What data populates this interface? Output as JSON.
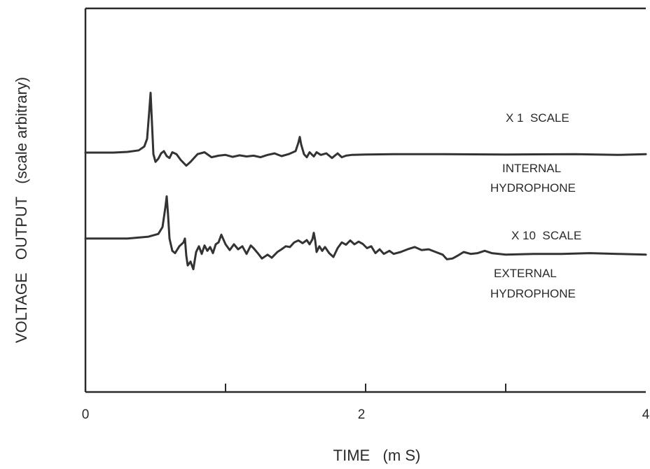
{
  "chart_data": {
    "type": "line",
    "title": "",
    "xlabel": "TIME   (m S)",
    "ylabel": "VOLTAGE   OUTPUT   (scale arbitrary)",
    "xlim": [
      0,
      4
    ],
    "ylim": [
      0,
      1
    ],
    "x_ticks": [
      0,
      2,
      4
    ],
    "x_minor_ticks": [
      1,
      3
    ],
    "grid": false,
    "y_scale_note": "arbitrary",
    "annotations": [
      "X 1  SCALE",
      "INTERNAL",
      "HYDROPHONE",
      "X 10  SCALE",
      "EXTERNAL",
      "HYDROPHONE"
    ],
    "series": [
      {
        "name": "INTERNAL HYDROPHONE",
        "scale": "X 1  SCALE",
        "points": [
          [
            0.0,
            0.624
          ],
          [
            0.2,
            0.624
          ],
          [
            0.3,
            0.626
          ],
          [
            0.38,
            0.63
          ],
          [
            0.42,
            0.64
          ],
          [
            0.44,
            0.66
          ],
          [
            0.455,
            0.73
          ],
          [
            0.465,
            0.78
          ],
          [
            0.475,
            0.7
          ],
          [
            0.485,
            0.62
          ],
          [
            0.5,
            0.6
          ],
          [
            0.52,
            0.608
          ],
          [
            0.54,
            0.622
          ],
          [
            0.56,
            0.628
          ],
          [
            0.58,
            0.615
          ],
          [
            0.6,
            0.61
          ],
          [
            0.62,
            0.625
          ],
          [
            0.65,
            0.62
          ],
          [
            0.68,
            0.605
          ],
          [
            0.72,
            0.59
          ],
          [
            0.75,
            0.6
          ],
          [
            0.8,
            0.62
          ],
          [
            0.85,
            0.625
          ],
          [
            0.9,
            0.612
          ],
          [
            0.95,
            0.616
          ],
          [
            1.0,
            0.618
          ],
          [
            1.05,
            0.613
          ],
          [
            1.1,
            0.617
          ],
          [
            1.15,
            0.614
          ],
          [
            1.2,
            0.616
          ],
          [
            1.25,
            0.612
          ],
          [
            1.3,
            0.618
          ],
          [
            1.35,
            0.622
          ],
          [
            1.4,
            0.615
          ],
          [
            1.45,
            0.62
          ],
          [
            1.5,
            0.628
          ],
          [
            1.52,
            0.65
          ],
          [
            1.53,
            0.665
          ],
          [
            1.54,
            0.645
          ],
          [
            1.56,
            0.62
          ],
          [
            1.58,
            0.612
          ],
          [
            1.6,
            0.625
          ],
          [
            1.63,
            0.614
          ],
          [
            1.65,
            0.625
          ],
          [
            1.68,
            0.618
          ],
          [
            1.72,
            0.622
          ],
          [
            1.76,
            0.61
          ],
          [
            1.8,
            0.622
          ],
          [
            1.83,
            0.612
          ],
          [
            1.86,
            0.616
          ],
          [
            1.9,
            0.618
          ],
          [
            2.0,
            0.619
          ],
          [
            2.2,
            0.62
          ],
          [
            2.5,
            0.62
          ],
          [
            3.0,
            0.619
          ],
          [
            3.5,
            0.62
          ],
          [
            3.8,
            0.618
          ],
          [
            4.0,
            0.62
          ]
        ]
      },
      {
        "name": "EXTERNAL HYDROPHONE",
        "scale": "X 10  SCALE",
        "points": [
          [
            0.0,
            0.4
          ],
          [
            0.3,
            0.4
          ],
          [
            0.45,
            0.405
          ],
          [
            0.52,
            0.412
          ],
          [
            0.55,
            0.43
          ],
          [
            0.57,
            0.48
          ],
          [
            0.58,
            0.51
          ],
          [
            0.59,
            0.46
          ],
          [
            0.6,
            0.4
          ],
          [
            0.62,
            0.368
          ],
          [
            0.64,
            0.362
          ],
          [
            0.67,
            0.38
          ],
          [
            0.7,
            0.39
          ],
          [
            0.71,
            0.4
          ],
          [
            0.72,
            0.355
          ],
          [
            0.73,
            0.33
          ],
          [
            0.75,
            0.34
          ],
          [
            0.77,
            0.32
          ],
          [
            0.79,
            0.365
          ],
          [
            0.81,
            0.38
          ],
          [
            0.83,
            0.36
          ],
          [
            0.85,
            0.382
          ],
          [
            0.87,
            0.368
          ],
          [
            0.89,
            0.378
          ],
          [
            0.91,
            0.362
          ],
          [
            0.93,
            0.385
          ],
          [
            0.95,
            0.39
          ],
          [
            0.97,
            0.41
          ],
          [
            1.0,
            0.385
          ],
          [
            1.03,
            0.37
          ],
          [
            1.06,
            0.385
          ],
          [
            1.09,
            0.372
          ],
          [
            1.12,
            0.38
          ],
          [
            1.15,
            0.36
          ],
          [
            1.18,
            0.382
          ],
          [
            1.2,
            0.375
          ],
          [
            1.23,
            0.362
          ],
          [
            1.26,
            0.348
          ],
          [
            1.3,
            0.358
          ],
          [
            1.33,
            0.35
          ],
          [
            1.37,
            0.365
          ],
          [
            1.4,
            0.372
          ],
          [
            1.43,
            0.38
          ],
          [
            1.46,
            0.378
          ],
          [
            1.49,
            0.39
          ],
          [
            1.52,
            0.395
          ],
          [
            1.55,
            0.388
          ],
          [
            1.58,
            0.396
          ],
          [
            1.6,
            0.385
          ],
          [
            1.62,
            0.398
          ],
          [
            1.63,
            0.415
          ],
          [
            1.64,
            0.395
          ],
          [
            1.65,
            0.365
          ],
          [
            1.67,
            0.38
          ],
          [
            1.69,
            0.368
          ],
          [
            1.71,
            0.378
          ],
          [
            1.74,
            0.362
          ],
          [
            1.77,
            0.352
          ],
          [
            1.8,
            0.375
          ],
          [
            1.83,
            0.39
          ],
          [
            1.86,
            0.384
          ],
          [
            1.89,
            0.395
          ],
          [
            1.92,
            0.385
          ],
          [
            1.95,
            0.392
          ],
          [
            1.98,
            0.386
          ],
          [
            2.01,
            0.375
          ],
          [
            2.04,
            0.38
          ],
          [
            2.07,
            0.362
          ],
          [
            2.1,
            0.372
          ],
          [
            2.13,
            0.36
          ],
          [
            2.17,
            0.368
          ],
          [
            2.2,
            0.36
          ],
          [
            2.25,
            0.365
          ],
          [
            2.3,
            0.372
          ],
          [
            2.35,
            0.378
          ],
          [
            2.4,
            0.37
          ],
          [
            2.45,
            0.372
          ],
          [
            2.5,
            0.365
          ],
          [
            2.55,
            0.358
          ],
          [
            2.58,
            0.346
          ],
          [
            2.62,
            0.348
          ],
          [
            2.66,
            0.356
          ],
          [
            2.7,
            0.365
          ],
          [
            2.75,
            0.36
          ],
          [
            2.8,
            0.362
          ],
          [
            2.85,
            0.368
          ],
          [
            2.9,
            0.362
          ],
          [
            3.0,
            0.358
          ],
          [
            3.2,
            0.36
          ],
          [
            3.4,
            0.36
          ],
          [
            3.6,
            0.362
          ],
          [
            3.8,
            0.36
          ],
          [
            4.0,
            0.358
          ]
        ]
      }
    ]
  }
}
